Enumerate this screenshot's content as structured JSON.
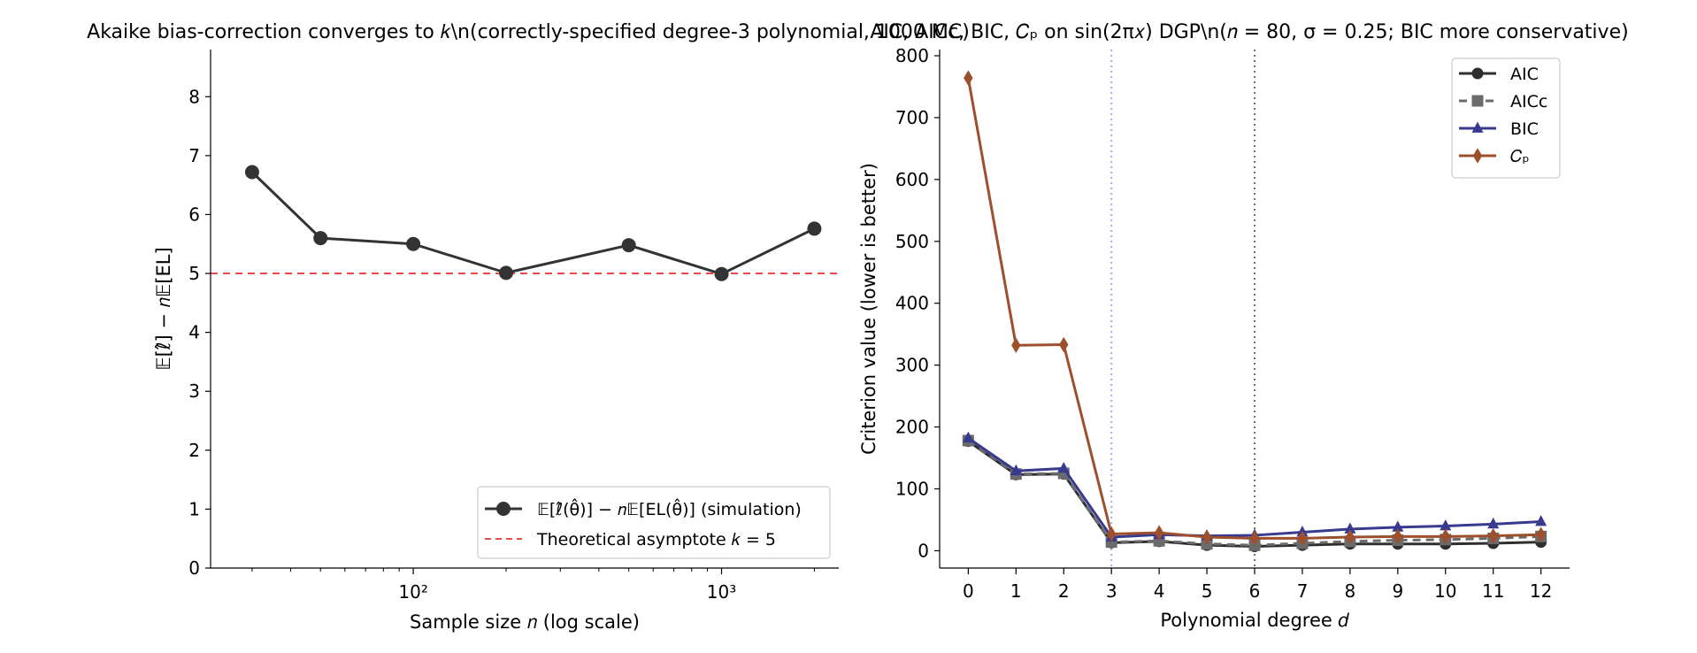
{
  "chart_data": [
    {
      "type": "line",
      "title": "Akaike bias-correction converges to 𝑘\\n(correctly-specified degree-3 polynomial, 1000 MC)",
      "xlabel": "Sample size 𝑛 (log scale)",
      "ylabel": "𝔼[ℓ̂] − 𝑛𝔼[EL]",
      "xscale": "log",
      "xlim": [
        22,
        2400
      ],
      "ylim": [
        0,
        8.8
      ],
      "yticks": [
        "0",
        "1",
        "2",
        "3",
        "4",
        "5",
        "6",
        "7",
        "8"
      ],
      "xticks": [
        "10²",
        "10³"
      ],
      "grid": false,
      "legend_position": "lower right",
      "series": [
        {
          "name": "𝔼[ℓ̂(θ̂)] − 𝑛𝔼[EL(θ̂)] (simulation)",
          "color": "#333333",
          "marker": "circle",
          "x": [
            30,
            50,
            100,
            200,
            500,
            1000,
            2000
          ],
          "y": [
            6.72,
            5.6,
            5.5,
            5.01,
            5.48,
            4.99,
            5.76
          ]
        }
      ],
      "reference_lines": [
        {
          "name": "Theoretical asymptote 𝑘 = 5",
          "orientation": "horizontal",
          "value": 5,
          "color": "#e84a4a",
          "style": "dashed"
        }
      ]
    },
    {
      "type": "line",
      "title": "AIC, AICc, BIC, 𝐶ₚ on sin(2π𝑥) DGP\\n(𝑛 = 80, σ = 0.25; BIC more conservative)",
      "xlabel": "Polynomial degree 𝑑",
      "ylabel": "Criterion value (lower is better)",
      "xlim": [
        -0.6,
        12.6
      ],
      "ylim": [
        -28,
        810
      ],
      "xticks": [
        "0",
        "1",
        "2",
        "3",
        "4",
        "5",
        "6",
        "7",
        "8",
        "9",
        "10",
        "11",
        "12"
      ],
      "yticks": [
        "0",
        "100",
        "200",
        "300",
        "400",
        "500",
        "600",
        "700",
        "800"
      ],
      "grid": false,
      "legend_position": "upper right",
      "x": [
        0,
        1,
        2,
        3,
        4,
        5,
        6,
        7,
        8,
        9,
        10,
        11,
        12
      ],
      "series": [
        {
          "name": "AIC",
          "color": "#2f2f2f",
          "marker": "circle",
          "style": "solid",
          "values": [
            177,
            123,
            124,
            13,
            15,
            9,
            7,
            9,
            11,
            11,
            11,
            12,
            14
          ]
        },
        {
          "name": "AICc",
          "color": "#6b6b6b",
          "marker": "square",
          "style": "dashed",
          "values": [
            178,
            124,
            125,
            14,
            16,
            11,
            9,
            12,
            15,
            17,
            18,
            20,
            23
          ]
        },
        {
          "name": "BIC",
          "color": "#383a8f",
          "marker": "triangle",
          "style": "solid",
          "values": [
            182,
            129,
            133,
            22,
            26,
            24,
            25,
            30,
            35,
            38,
            40,
            43,
            47
          ]
        },
        {
          "name": "𝐶ₚ",
          "color": "#9e4f2c",
          "marker": "diamond",
          "style": "solid",
          "values": [
            764,
            332,
            333,
            27,
            29,
            22,
            20,
            20,
            22,
            23,
            23,
            24,
            26
          ]
        }
      ],
      "reference_lines": [
        {
          "orientation": "vertical",
          "value": 3,
          "color": "#a9a9e0",
          "style": "dotted"
        },
        {
          "orientation": "vertical",
          "value": 6,
          "color": "#8b6b5e",
          "style": "dotted"
        }
      ]
    }
  ]
}
